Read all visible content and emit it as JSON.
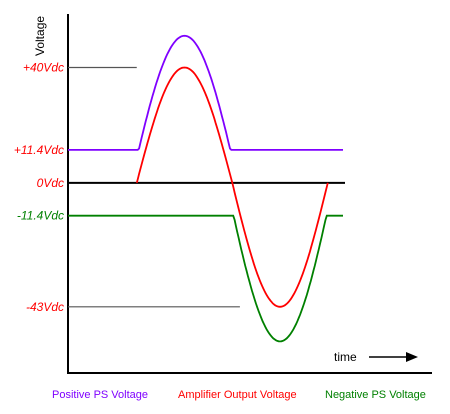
{
  "chart_data": {
    "type": "line",
    "ylabel": "Voltage",
    "xlabel": "time",
    "x_arrow_icon": "right-arrow-icon",
    "y_ticks": [
      {
        "label": "+40Vdc",
        "value": 40,
        "color": "#ff0000"
      },
      {
        "label": "+11.4Vdc",
        "value": 11.4,
        "color": "#ff0000"
      },
      {
        "label": "0Vdc",
        "value": 0,
        "color": "#ff0000"
      },
      {
        "label": "-11.4Vdc",
        "value": -11.4,
        "color": "#008000"
      },
      {
        "label": "-43Vdc",
        "value": -43,
        "color": "#ff0000"
      }
    ],
    "ylim": [
      -67,
      53
    ],
    "xlim": [
      0,
      100
    ],
    "half_period": 25,
    "output_amplitude": 40,
    "series": [
      {
        "name": "Positive PS Voltage",
        "color": "#7f00ff",
        "baseline": 11.4
      },
      {
        "name": "Amplifier Output Voltage",
        "color": "#ff0000"
      },
      {
        "name": "Negative PS Voltage",
        "color": "#008000",
        "baseline": -11.4
      }
    ],
    "grid": false
  }
}
